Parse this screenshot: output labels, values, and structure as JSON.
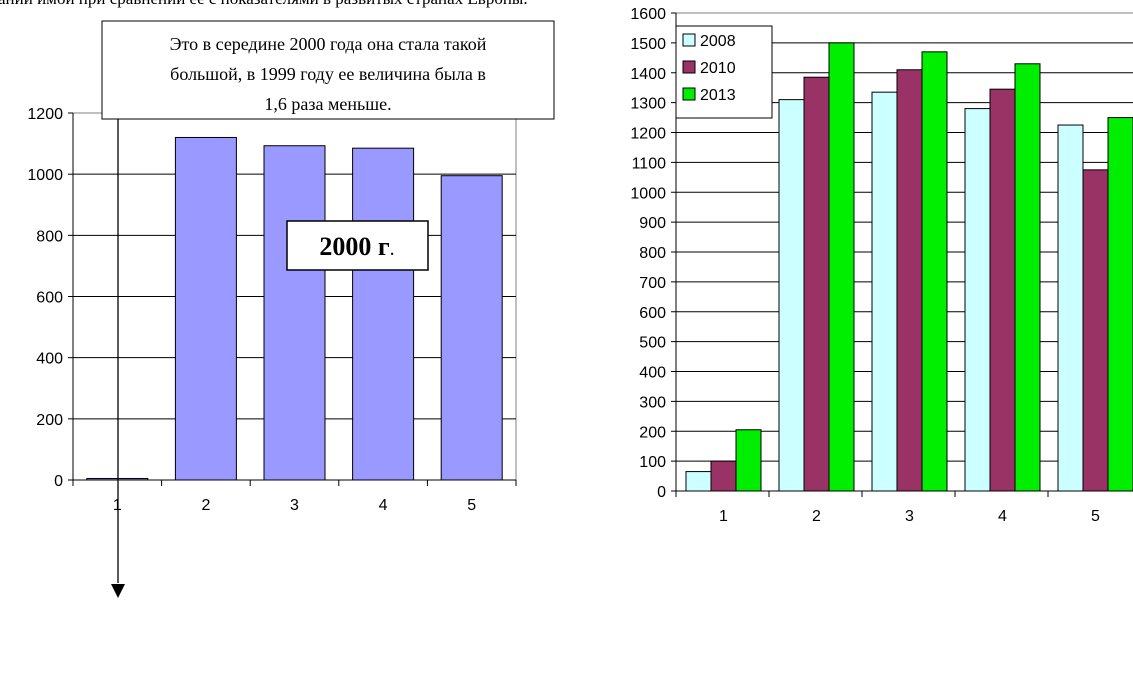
{
  "header_text": "ании имой при сравнении ее с показателями в развитых странах Европы.",
  "chart_data": [
    {
      "type": "bar",
      "categories": [
        "1",
        "2",
        "3",
        "4",
        "5"
      ],
      "values": [
        5,
        1120,
        1093,
        1085,
        995
      ],
      "ylim": [
        0,
        1200
      ],
      "yticks": [
        0,
        200,
        400,
        600,
        800,
        1000,
        1200
      ],
      "grid": true,
      "bar_color": "#9999ff",
      "annotations": {
        "note_lines": [
          "Это в середине 2000 года она стала такой",
          "большой, в 1999 году ее величина была  в",
          "1,6 раза меньше."
        ],
        "year_label_bold": "2000 г",
        "year_label_tail": "."
      }
    },
    {
      "type": "bar",
      "categories": [
        "1",
        "2",
        "3",
        "4",
        "5"
      ],
      "series": [
        {
          "name": "2008",
          "values": [
            65,
            1310,
            1335,
            1280,
            1225
          ],
          "color": "#ccffff"
        },
        {
          "name": "2010",
          "values": [
            100,
            1385,
            1410,
            1345,
            1075
          ],
          "color": "#993366"
        },
        {
          "name": "2013",
          "values": [
            205,
            1500,
            1470,
            1430,
            1250
          ],
          "color": "#00ee00"
        }
      ],
      "ylim": [
        0,
        1600
      ],
      "yticks": [
        0,
        100,
        200,
        300,
        400,
        500,
        600,
        700,
        800,
        900,
        1000,
        1100,
        1200,
        1300,
        1400,
        1500,
        1600
      ],
      "grid": true,
      "legend_position": "top-left"
    }
  ]
}
